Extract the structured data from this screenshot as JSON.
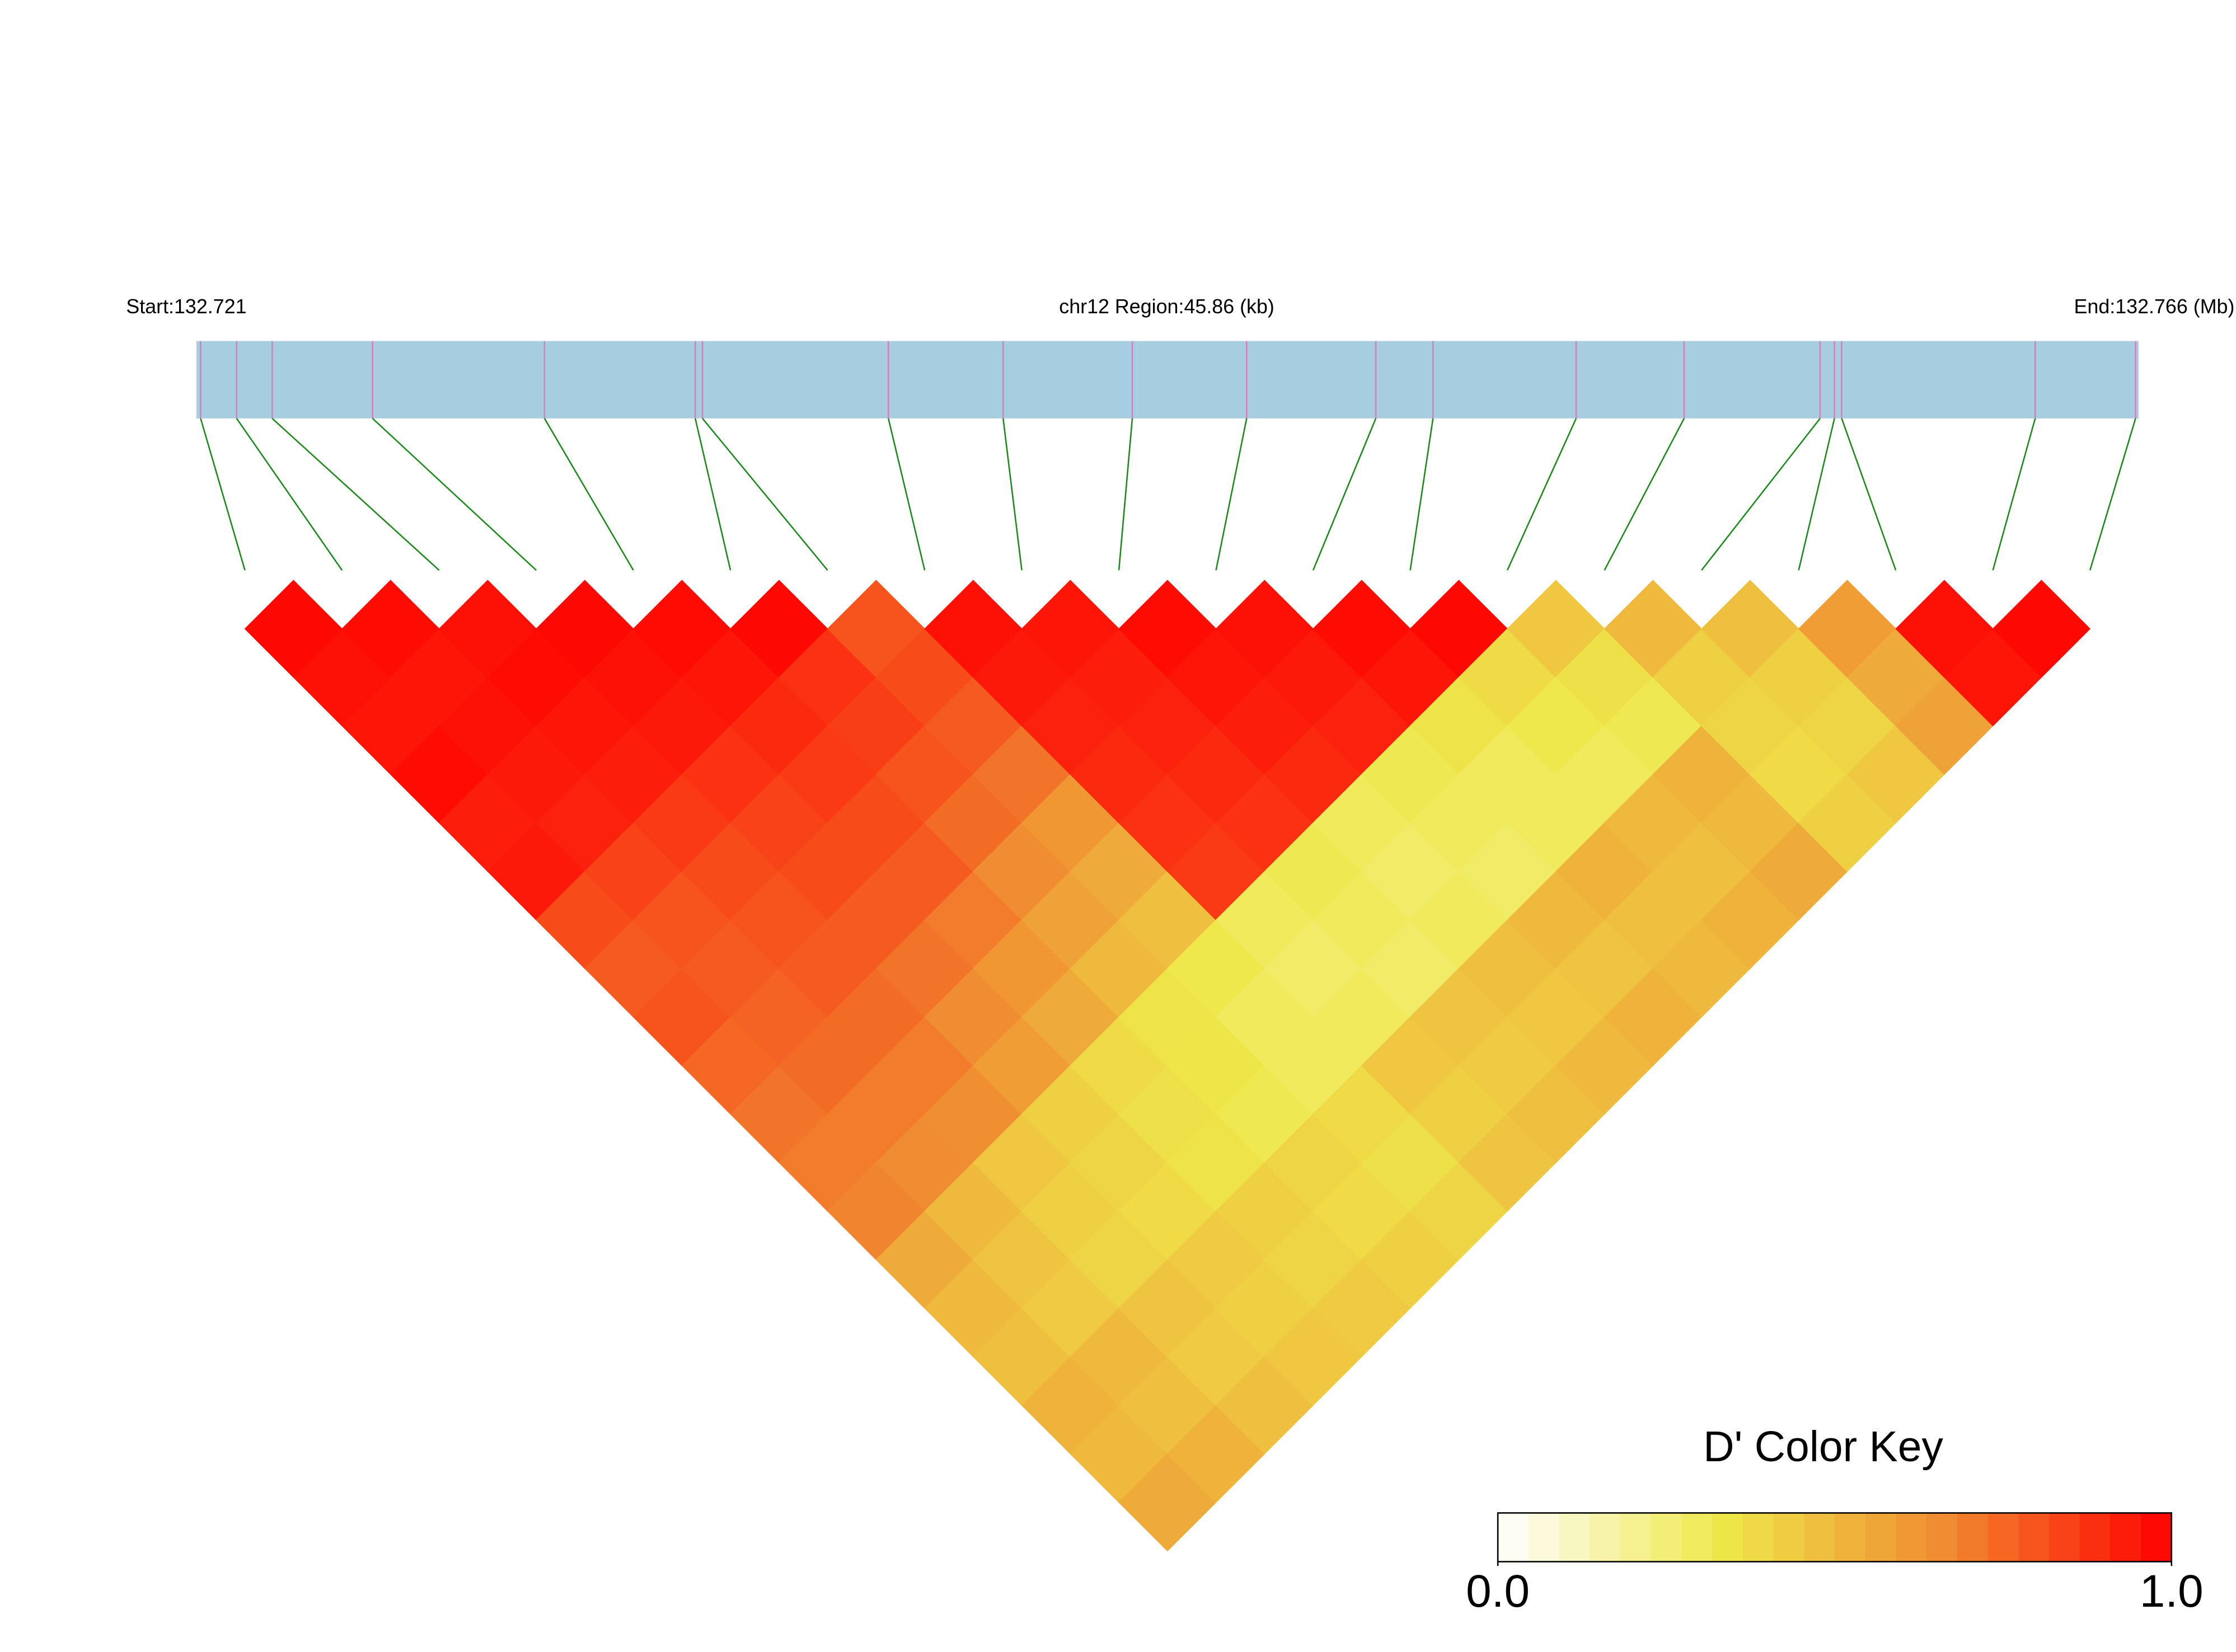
{
  "chart_data": {
    "type": "ld-heatmap",
    "start_label": "Start:132.721",
    "region_label": "chr12 Region:45.86 (kb)",
    "end_label": "End:132.766 (Mb)",
    "xlim": [
      0,
      45.86
    ],
    "snp_positions_kb": [
      0.1,
      0.95,
      1.79,
      4.16,
      8.22,
      11.78,
      11.95,
      16.34,
      19.05,
      22.1,
      24.8,
      27.85,
      29.2,
      32.58,
      35.13,
      38.34,
      38.68,
      38.85,
      43.42,
      45.79
    ],
    "bar_color": "#a7cde0",
    "marker_color": "#d97fb8",
    "link_color": "#1a8a1a",
    "dprime": [
      [
        0.98,
        0.96,
        0.95,
        0.97,
        0.93,
        0.94,
        0.82,
        0.78,
        0.8,
        0.75,
        0.72,
        0.7,
        0.68,
        0.55,
        0.5,
        0.48,
        0.52,
        0.5,
        0.55
      ],
      [
        0.97,
        0.95,
        0.96,
        0.94,
        0.92,
        0.84,
        0.8,
        0.78,
        0.76,
        0.74,
        0.7,
        0.66,
        0.5,
        0.46,
        0.44,
        0.5,
        0.48,
        0.52
      ],
      [
        0.96,
        0.97,
        0.95,
        0.93,
        0.86,
        0.82,
        0.8,
        0.78,
        0.74,
        0.7,
        0.65,
        0.45,
        0.42,
        0.4,
        0.46,
        0.44,
        0.48
      ],
      [
        0.98,
        0.96,
        0.94,
        0.88,
        0.84,
        0.82,
        0.78,
        0.72,
        0.66,
        0.6,
        0.42,
        0.4,
        0.38,
        0.44,
        0.42,
        0.45
      ],
      [
        0.97,
        0.95,
        0.9,
        0.86,
        0.82,
        0.78,
        0.7,
        0.62,
        0.55,
        0.38,
        0.36,
        0.35,
        0.42,
        0.4,
        0.44
      ],
      [
        0.98,
        0.88,
        0.85,
        0.8,
        0.74,
        0.66,
        0.58,
        0.5,
        0.35,
        0.34,
        0.32,
        0.4,
        0.38,
        0.42
      ],
      [
        0.8,
        0.82,
        0.78,
        0.72,
        0.62,
        0.55,
        0.48,
        0.33,
        0.3,
        0.3,
        0.38,
        0.36,
        0.4
      ],
      [
        0.96,
        0.94,
        0.92,
        0.9,
        0.88,
        0.86,
        0.3,
        0.28,
        0.3,
        0.45,
        0.42,
        0.46
      ],
      [
        0.95,
        0.93,
        0.92,
        0.9,
        0.88,
        0.32,
        0.3,
        0.28,
        0.46,
        0.44,
        0.48
      ],
      [
        0.97,
        0.95,
        0.93,
        0.9,
        0.3,
        0.28,
        0.3,
        0.48,
        0.45,
        0.5
      ],
      [
        0.96,
        0.94,
        0.92,
        0.32,
        0.3,
        0.28,
        0.5,
        0.46,
        0.52
      ],
      [
        0.97,
        0.95,
        0.35,
        0.3,
        0.3,
        0.52,
        0.48,
        0.5
      ],
      [
        0.98,
        0.38,
        0.33,
        0.3,
        0.5,
        0.48,
        0.52
      ],
      [
        0.45,
        0.36,
        0.32,
        0.52,
        0.5,
        0.55
      ],
      [
        0.5,
        0.42,
        0.4,
        0.38,
        0.42
      ],
      [
        0.48,
        0.42,
        0.4,
        0.45
      ],
      [
        0.6,
        0.55,
        0.58
      ],
      [
        0.96,
        0.95
      ],
      [
        0.98
      ]
    ],
    "legend": {
      "title": "D' Color Key",
      "lim": [
        0,
        1
      ],
      "ticks": [
        {
          "value": 0,
          "label": "0.0"
        },
        {
          "value": 1,
          "label": "1.0"
        }
      ],
      "colors": [
        "#ffffff",
        "#eee84a",
        "#f08a30",
        "#ff0000"
      ]
    }
  }
}
